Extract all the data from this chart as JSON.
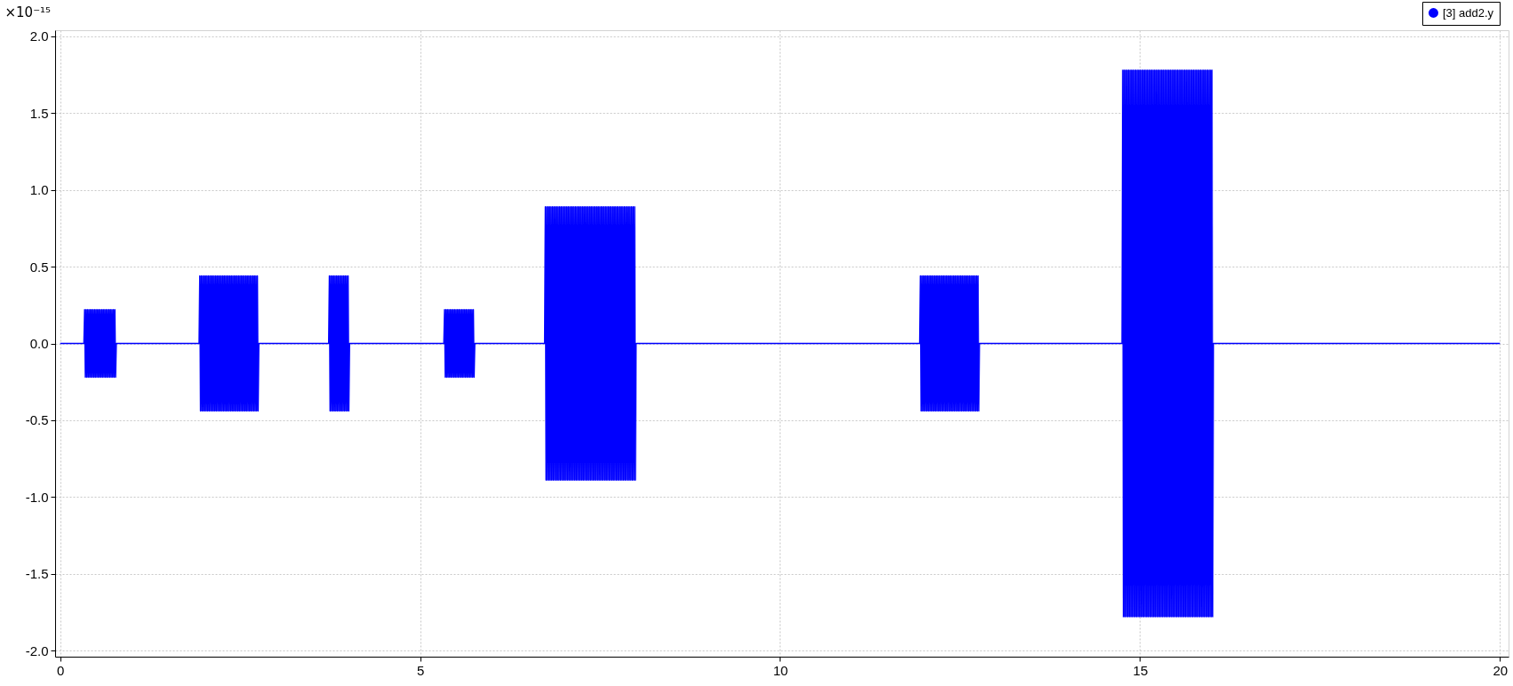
{
  "chart_data": {
    "type": "line",
    "ylabel": "×10⁻¹⁵",
    "x": [
      0,
      0.33,
      0.34,
      0.35,
      0.36,
      0.37,
      0.38,
      0.39,
      0.4,
      0.41,
      0.42,
      0.43,
      0.44,
      0.45,
      0.46,
      0.47,
      0.48,
      0.49,
      0.5,
      0.51,
      0.52,
      0.53,
      0.54,
      0.55,
      0.56,
      0.57,
      0.58,
      0.59,
      0.6,
      0.61,
      0.62,
      0.63,
      0.64,
      0.65,
      0.66,
      0.67,
      0.68,
      0.69,
      0.7,
      0.71,
      0.72,
      0.73,
      0.74,
      0.75,
      0.76,
      0.77,
      0.78,
      1.93,
      1.94,
      1.95,
      1.96,
      1.97,
      1.98,
      1.99,
      2,
      2.01,
      2.02,
      2.03,
      2.04,
      2.05,
      2.06,
      2.07,
      2.08,
      2.09,
      2.1,
      2.11,
      2.12,
      2.13,
      2.14,
      2.15,
      2.16,
      2.17,
      2.18,
      2.19,
      2.2,
      2.21,
      2.22,
      2.23,
      2.24,
      2.25,
      2.26,
      2.27,
      2.28,
      2.29,
      2.3,
      2.31,
      2.32,
      2.33,
      2.34,
      2.35,
      2.36,
      2.37,
      2.38,
      2.39,
      2.4,
      2.41,
      2.42,
      2.43,
      2.44,
      2.45,
      2.46,
      2.47,
      2.48,
      2.49,
      2.5,
      2.51,
      2.52,
      2.53,
      2.54,
      2.55,
      2.56,
      2.57,
      2.58,
      2.59,
      2.6,
      2.61,
      2.62,
      2.63,
      2.64,
      2.65,
      2.66,
      2.67,
      2.68,
      2.69,
      2.7,
      2.71,
      2.72,
      2.73,
      2.74,
      2.75,
      2.76,
      3.73,
      3.74,
      3.75,
      3.76,
      3.77,
      3.78,
      3.79,
      3.8,
      3.81,
      3.82,
      3.83,
      3.84,
      3.85,
      3.86,
      3.87,
      3.88,
      3.89,
      3.9,
      3.91,
      3.92,
      3.93,
      3.94,
      3.95,
      3.96,
      3.97,
      3.98,
      3.99,
      4,
      4.01,
      4.02,
      5.33,
      5.34,
      5.35,
      5.36,
      5.37,
      5.38,
      5.39,
      5.4,
      5.41,
      5.42,
      5.43,
      5.44,
      5.45,
      5.46,
      5.47,
      5.48,
      5.49,
      5.5,
      5.51,
      5.52,
      5.53,
      5.54,
      5.55,
      5.56,
      5.57,
      5.58,
      5.59,
      5.6,
      5.61,
      5.62,
      5.63,
      5.64,
      5.65,
      5.66,
      5.67,
      5.68,
      5.69,
      5.7,
      5.71,
      5.72,
      5.73,
      5.74,
      5.75,
      5.76,
      6.73,
      6.74,
      6.75,
      6.76,
      6.77,
      6.78,
      6.79,
      6.8,
      6.81,
      6.82,
      6.83,
      6.84,
      6.85,
      6.86,
      6.87,
      6.88,
      6.89,
      6.9,
      6.91,
      6.92,
      6.93,
      6.94,
      6.95,
      6.96,
      6.97,
      6.98,
      6.99,
      7,
      7.01,
      7.02,
      7.03,
      7.04,
      7.05,
      7.06,
      7.07,
      7.08,
      7.09,
      7.1,
      7.11,
      7.12,
      7.13,
      7.14,
      7.15,
      7.16,
      7.17,
      7.18,
      7.19,
      7.2,
      7.21,
      7.22,
      7.23,
      7.24,
      7.25,
      7.26,
      7.27,
      7.28,
      7.29,
      7.3,
      7.31,
      7.32,
      7.33,
      7.34,
      7.35,
      7.36,
      7.37,
      7.38,
      7.39,
      7.4,
      7.41,
      7.42,
      7.43,
      7.44,
      7.45,
      7.46,
      7.47,
      7.48,
      7.49,
      7.5,
      7.51,
      7.52,
      7.53,
      7.54,
      7.55,
      7.56,
      7.57,
      7.58,
      7.59,
      7.6,
      7.61,
      7.62,
      7.63,
      7.64,
      7.65,
      7.66,
      7.67,
      7.68,
      7.69,
      7.7,
      7.71,
      7.72,
      7.73,
      7.74,
      7.75,
      7.76,
      7.77,
      7.78,
      7.79,
      7.8,
      7.81,
      7.82,
      7.83,
      7.84,
      7.85,
      7.86,
      7.87,
      7.88,
      7.89,
      7.9,
      7.91,
      7.92,
      7.93,
      7.94,
      7.95,
      7.96,
      7.97,
      7.98,
      7.99,
      8,
      11.94,
      11.95,
      11.96,
      11.97,
      11.98,
      11.99,
      12,
      12.01,
      12.02,
      12.03,
      12.04,
      12.05,
      12.06,
      12.07,
      12.08,
      12.09,
      12.1,
      12.11,
      12.12,
      12.13,
      12.14,
      12.15,
      12.16,
      12.17,
      12.18,
      12.19,
      12.2,
      12.21,
      12.22,
      12.23,
      12.24,
      12.25,
      12.26,
      12.27,
      12.28,
      12.29,
      12.3,
      12.31,
      12.32,
      12.33,
      12.34,
      12.35,
      12.36,
      12.37,
      12.38,
      12.39,
      12.4,
      12.41,
      12.42,
      12.43,
      12.44,
      12.45,
      12.46,
      12.47,
      12.48,
      12.49,
      12.5,
      12.51,
      12.52,
      12.53,
      12.54,
      12.55,
      12.56,
      12.57,
      12.58,
      12.59,
      12.6,
      12.61,
      12.62,
      12.63,
      12.64,
      12.65,
      12.66,
      12.67,
      12.68,
      12.69,
      12.7,
      12.71,
      12.72,
      12.73,
      12.74,
      12.75,
      12.76,
      12.77,
      14.75,
      14.76,
      14.77,
      14.78,
      14.79,
      14.8,
      14.81,
      14.82,
      14.83,
      14.84,
      14.85,
      14.86,
      14.87,
      14.88,
      14.89,
      14.9,
      14.91,
      14.92,
      14.93,
      14.94,
      14.95,
      14.96,
      14.97,
      14.98,
      14.99,
      15,
      15.01,
      15.02,
      15.03,
      15.04,
      15.05,
      15.06,
      15.07,
      15.08,
      15.09,
      15.1,
      15.11,
      15.12,
      15.13,
      15.14,
      15.15,
      15.16,
      15.17,
      15.18,
      15.19,
      15.2,
      15.21,
      15.22,
      15.23,
      15.24,
      15.25,
      15.26,
      15.27,
      15.28,
      15.29,
      15.3,
      15.31,
      15.32,
      15.33,
      15.34,
      15.35,
      15.36,
      15.37,
      15.38,
      15.39,
      15.4,
      15.41,
      15.42,
      15.43,
      15.44,
      15.45,
      15.46,
      15.47,
      15.48,
      15.49,
      15.5,
      15.51,
      15.52,
      15.53,
      15.54,
      15.55,
      15.56,
      15.57,
      15.58,
      15.59,
      15.6,
      15.61,
      15.62,
      15.63,
      15.64,
      15.65,
      15.66,
      15.67,
      15.68,
      15.69,
      15.7,
      15.71,
      15.72,
      15.73,
      15.74,
      15.75,
      15.76,
      15.77,
      15.78,
      15.79,
      15.8,
      15.81,
      15.82,
      15.83,
      15.84,
      15.85,
      15.86,
      15.87,
      15.88,
      15.89,
      15.9,
      15.91,
      15.92,
      15.93,
      15.94,
      15.95,
      15.96,
      15.97,
      15.98,
      15.99,
      16,
      16.01,
      16.02,
      20
    ],
    "series": [
      {
        "name": "[3] add2.y",
        "color": "#0000ff",
        "values": [
          0,
          0,
          0.22,
          -0.22,
          0.22,
          -0.22,
          0.22,
          -0.22,
          0.22,
          -0.22,
          0.22,
          -0.22,
          0.22,
          -0.22,
          0.22,
          -0.22,
          0.22,
          -0.22,
          0.22,
          -0.22,
          0.22,
          -0.22,
          0.22,
          -0.22,
          0.22,
          -0.22,
          0.22,
          -0.22,
          0.22,
          -0.22,
          0.22,
          -0.22,
          0.22,
          -0.22,
          0.22,
          -0.22,
          0.22,
          -0.22,
          0.22,
          -0.22,
          0.22,
          -0.22,
          0.22,
          -0.22,
          0.22,
          -0.22,
          0,
          0,
          0.44,
          -0.44,
          0.44,
          -0.44,
          0.44,
          -0.44,
          0.44,
          -0.44,
          0.44,
          -0.44,
          0.44,
          -0.44,
          0.44,
          -0.44,
          0.44,
          -0.44,
          0.44,
          -0.44,
          0.44,
          -0.44,
          0.44,
          -0.44,
          0.44,
          -0.44,
          0.44,
          -0.44,
          0.44,
          -0.44,
          0.44,
          -0.44,
          0.44,
          -0.44,
          0.44,
          -0.44,
          0.44,
          -0.44,
          0.44,
          -0.44,
          0.44,
          -0.44,
          0.44,
          -0.44,
          0.44,
          -0.44,
          0.44,
          -0.44,
          0.44,
          -0.44,
          0.44,
          -0.44,
          0.44,
          -0.44,
          0.44,
          -0.44,
          0.44,
          -0.44,
          0.44,
          -0.44,
          0.44,
          -0.44,
          0.44,
          -0.44,
          0.44,
          -0.44,
          0.44,
          -0.44,
          0.44,
          -0.44,
          0.44,
          -0.44,
          0.44,
          -0.44,
          0.44,
          -0.44,
          0.44,
          -0.44,
          0.44,
          -0.44,
          0.44,
          -0.44,
          0.44,
          -0.44,
          0,
          0,
          0.44,
          -0.44,
          0.44,
          -0.44,
          0.44,
          -0.44,
          0.44,
          -0.44,
          0.44,
          -0.44,
          0.44,
          -0.44,
          0.44,
          -0.44,
          0.44,
          -0.44,
          0.44,
          -0.44,
          0.44,
          -0.44,
          0.44,
          -0.44,
          0.44,
          -0.44,
          0.44,
          -0.44,
          0.44,
          -0.44,
          0,
          0,
          0.22,
          -0.22,
          0.22,
          -0.22,
          0.22,
          -0.22,
          0.22,
          -0.22,
          0.22,
          -0.22,
          0.22,
          -0.22,
          0.22,
          -0.22,
          0.22,
          -0.22,
          0.22,
          -0.22,
          0.22,
          -0.22,
          0.22,
          -0.22,
          0.22,
          -0.22,
          0.22,
          -0.22,
          0.22,
          -0.22,
          0.22,
          -0.22,
          0.22,
          -0.22,
          0.22,
          -0.22,
          0.22,
          -0.22,
          0.22,
          -0.22,
          0.22,
          -0.22,
          0.22,
          -0.22,
          0,
          0,
          0.89,
          -0.89,
          0.89,
          -0.89,
          0.89,
          -0.89,
          0.89,
          -0.89,
          0.89,
          -0.89,
          0.89,
          -0.89,
          0.89,
          -0.89,
          0.89,
          -0.89,
          0.89,
          -0.89,
          0.89,
          -0.89,
          0.89,
          -0.89,
          0.89,
          -0.89,
          0.89,
          -0.89,
          0.89,
          -0.89,
          0.89,
          -0.89,
          0.89,
          -0.89,
          0.89,
          -0.89,
          0.89,
          -0.89,
          0.89,
          -0.89,
          0.89,
          -0.89,
          0.89,
          -0.89,
          0.89,
          -0.89,
          0.89,
          -0.89,
          0.89,
          -0.89,
          0.89,
          -0.89,
          0.89,
          -0.89,
          0.89,
          -0.89,
          0.89,
          -0.89,
          0.89,
          -0.89,
          0.89,
          -0.89,
          0.89,
          -0.89,
          0.89,
          -0.89,
          0.89,
          -0.89,
          0.89,
          -0.89,
          0.89,
          -0.89,
          0.89,
          -0.89,
          0.89,
          -0.89,
          0.89,
          -0.89,
          0.89,
          -0.89,
          0.89,
          -0.89,
          0.89,
          -0.89,
          0.89,
          -0.89,
          0.89,
          -0.89,
          0.89,
          -0.89,
          0.89,
          -0.89,
          0.89,
          -0.89,
          0.89,
          -0.89,
          0.89,
          -0.89,
          0.89,
          -0.89,
          0.89,
          -0.89,
          0.89,
          -0.89,
          0.89,
          -0.89,
          0.89,
          -0.89,
          0.89,
          -0.89,
          0.89,
          -0.89,
          0.89,
          -0.89,
          0.89,
          -0.89,
          0.89,
          -0.89,
          0.89,
          -0.89,
          0.89,
          -0.89,
          0.89,
          -0.89,
          0.89,
          -0.89,
          0.89,
          -0.89,
          0,
          0,
          0.44,
          -0.44,
          0.44,
          -0.44,
          0.44,
          -0.44,
          0.44,
          -0.44,
          0.44,
          -0.44,
          0.44,
          -0.44,
          0.44,
          -0.44,
          0.44,
          -0.44,
          0.44,
          -0.44,
          0.44,
          -0.44,
          0.44,
          -0.44,
          0.44,
          -0.44,
          0.44,
          -0.44,
          0.44,
          -0.44,
          0.44,
          -0.44,
          0.44,
          -0.44,
          0.44,
          -0.44,
          0.44,
          -0.44,
          0.44,
          -0.44,
          0.44,
          -0.44,
          0.44,
          -0.44,
          0.44,
          -0.44,
          0.44,
          -0.44,
          0.44,
          -0.44,
          0.44,
          -0.44,
          0.44,
          -0.44,
          0.44,
          -0.44,
          0.44,
          -0.44,
          0.44,
          -0.44,
          0.44,
          -0.44,
          0.44,
          -0.44,
          0.44,
          -0.44,
          0.44,
          -0.44,
          0.44,
          -0.44,
          0.44,
          -0.44,
          0.44,
          -0.44,
          0.44,
          -0.44,
          0.44,
          -0.44,
          0.44,
          -0.44,
          0.44,
          -0.44,
          0.44,
          -0.44,
          0,
          0,
          1.78,
          -1.78,
          1.78,
          -1.78,
          1.78,
          -1.78,
          1.78,
          -1.78,
          1.78,
          -1.78,
          1.78,
          -1.78,
          1.78,
          -1.78,
          1.78,
          -1.78,
          1.78,
          -1.78,
          1.78,
          -1.78,
          1.78,
          -1.78,
          1.78,
          -1.78,
          1.78,
          -1.78,
          1.78,
          -1.78,
          1.78,
          -1.78,
          1.78,
          -1.78,
          1.78,
          -1.78,
          1.78,
          -1.78,
          1.78,
          -1.78,
          1.78,
          -1.78,
          1.78,
          -1.78,
          1.78,
          -1.78,
          1.78,
          -1.78,
          1.78,
          -1.78,
          1.78,
          -1.78,
          1.78,
          -1.78,
          1.78,
          -1.78,
          1.78,
          -1.78,
          1.78,
          -1.78,
          1.78,
          -1.78,
          1.78,
          -1.78,
          1.78,
          -1.78,
          1.78,
          -1.78,
          1.78,
          -1.78,
          1.78,
          -1.78,
          1.78,
          -1.78,
          1.78,
          -1.78,
          1.78,
          -1.78,
          1.78,
          -1.78,
          1.78,
          -1.78,
          1.78,
          -1.78,
          1.78,
          -1.78,
          1.78,
          -1.78,
          1.78,
          -1.78,
          1.78,
          -1.78,
          1.78,
          -1.78,
          1.78,
          -1.78,
          1.78,
          -1.78,
          1.78,
          -1.78,
          1.78,
          -1.78,
          1.78,
          -1.78,
          1.78,
          -1.78,
          1.78,
          -1.78,
          1.78,
          -1.78,
          1.78,
          -1.78,
          1.78,
          -1.78,
          1.78,
          -1.78,
          1.78,
          -1.78,
          1.78,
          -1.78,
          1.78,
          -1.78,
          1.78,
          -1.78,
          1.78,
          -1.78,
          1.78,
          -1.78,
          0,
          0
        ]
      }
    ],
    "xlim": [
      -0.07,
      20.12
    ],
    "xticks": [
      0,
      5,
      10,
      15,
      20
    ],
    "ylim": [
      -2.04,
      2.04
    ],
    "yticks": [
      {
        "value": 2,
        "label": "2.0"
      },
      1.5,
      {
        "value": 1,
        "label": "1.0"
      },
      0.5,
      {
        "value": 0,
        "label": "0.0"
      },
      -0.5,
      {
        "value": -1,
        "label": "-1.0"
      },
      -1.5,
      {
        "value": -2,
        "label": "-2.0"
      }
    ],
    "grid": true,
    "legend": "top right"
  }
}
